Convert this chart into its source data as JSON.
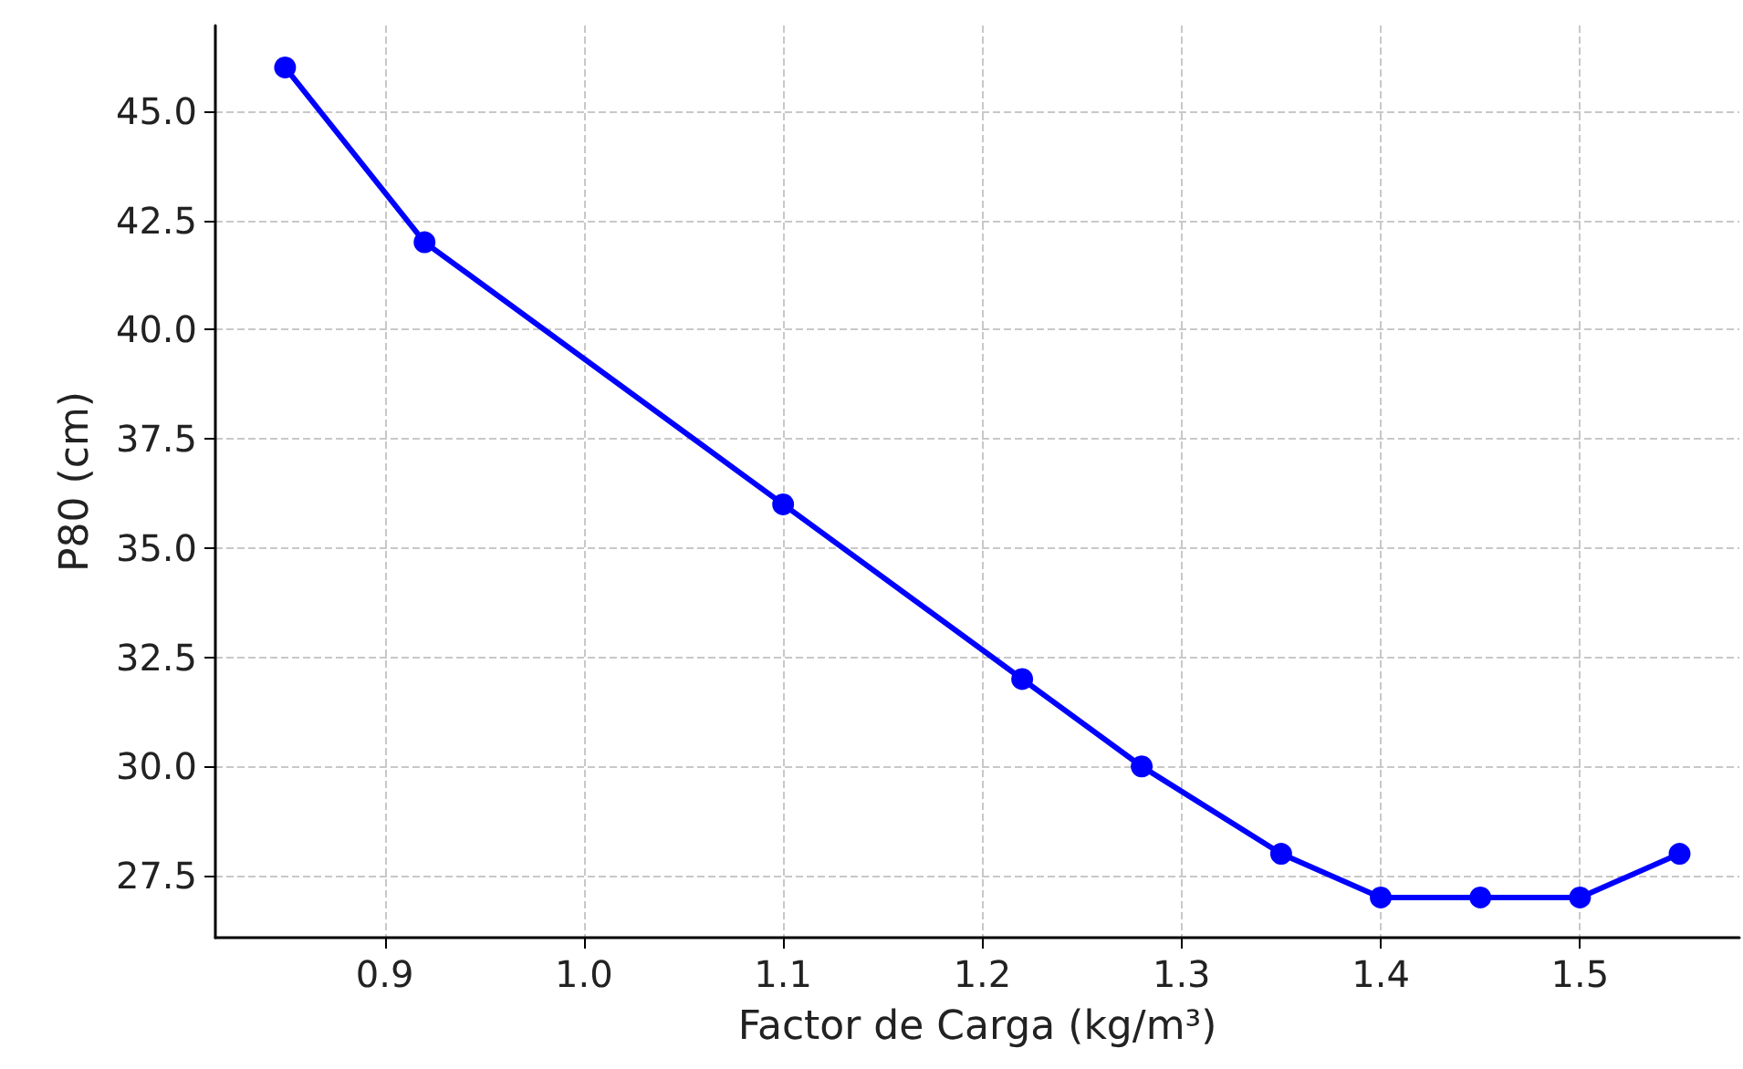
{
  "chart_data": {
    "type": "line",
    "xlabel": "Factor de Carga (kg/m³)",
    "ylabel": "P80 (cm)",
    "x": [
      0.85,
      0.92,
      1.1,
      1.22,
      1.28,
      1.35,
      1.4,
      1.45,
      1.5,
      1.55
    ],
    "series": [
      {
        "color": "#0000ff",
        "values": [
          46,
          42,
          36,
          32,
          30,
          28,
          27,
          27,
          27,
          28
        ]
      }
    ],
    "xlim": [
      0.815,
      1.58
    ],
    "ylim": [
      26.08,
      46.96
    ],
    "xticks": [
      0.9,
      {
        "value": 1.0,
        "label": "1.0"
      },
      1.1,
      1.2,
      1.3,
      1.4,
      1.5
    ],
    "yticks": [
      27.5,
      {
        "value": 30,
        "label": "30.0"
      },
      32.5,
      {
        "value": 35,
        "label": "35.0"
      },
      37.5,
      {
        "value": 40,
        "label": "40.0"
      },
      42.5,
      {
        "value": 45,
        "label": "45.0"
      }
    ],
    "grid": true,
    "marker": "circle",
    "line_style": "solid"
  }
}
